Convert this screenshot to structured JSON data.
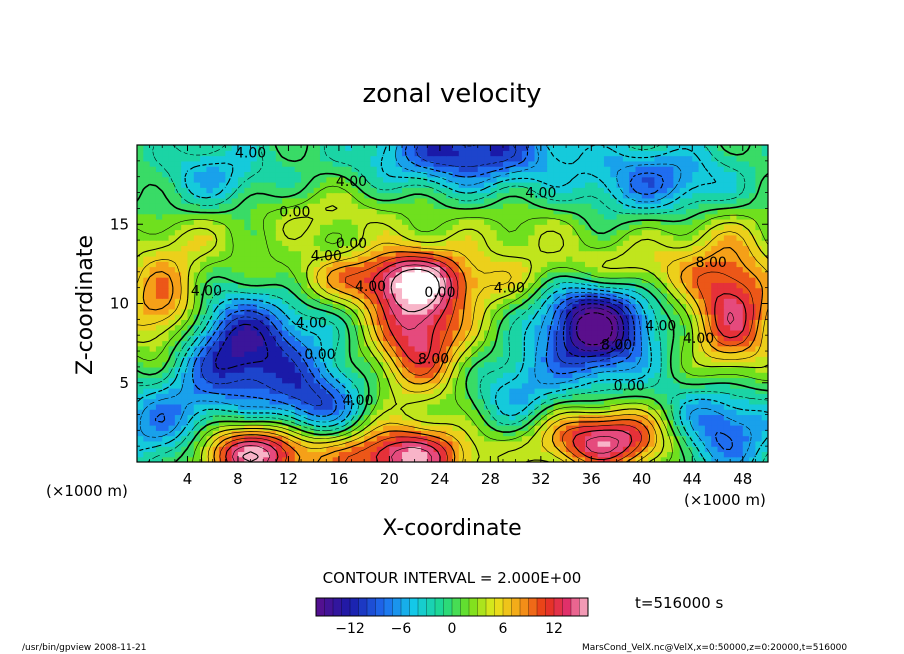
{
  "chart_data": {
    "type": "heatmap",
    "title": "zonal velocity",
    "xlabel": "X-coordinate",
    "ylabel": "Z-coordinate",
    "x_unit": "(×1000 m)",
    "z_unit": "(×1000 m)",
    "x_ticks": [
      "4",
      "8",
      "12",
      "16",
      "20",
      "24",
      "28",
      "32",
      "36",
      "40",
      "44",
      "48"
    ],
    "x_tick_values": [
      4,
      8,
      12,
      16,
      20,
      24,
      28,
      32,
      36,
      40,
      44,
      48
    ],
    "y_ticks": [
      "5",
      "10",
      "15"
    ],
    "y_tick_values": [
      5,
      10,
      15
    ],
    "xlim": [
      0,
      50
    ],
    "ylim": [
      0,
      20
    ],
    "contour_interval_text": "CONTOUR INTERVAL = 2.000E+00",
    "time_text": "t=516000 s",
    "colorbar": {
      "range": [
        -16,
        16
      ],
      "ticks": [
        "−12",
        "−6",
        "0",
        "6",
        "12"
      ],
      "tick_values": [
        -12,
        -6,
        0,
        6,
        12
      ]
    },
    "contour_labels": [
      {
        "text": "4.00",
        "x": 9,
        "z": 19.2
      },
      {
        "text": "4.00",
        "x": 17,
        "z": 17.4
      },
      {
        "text": "4.00",
        "x": 32,
        "z": 16.7
      },
      {
        "text": "0.00",
        "x": 12.5,
        "z": 15.5
      },
      {
        "text": "0.00",
        "x": 17,
        "z": 13.5
      },
      {
        "text": "4.00",
        "x": 15,
        "z": 12.7
      },
      {
        "text": "8.00",
        "x": 45.5,
        "z": 12.3
      },
      {
        "text": "4.00",
        "x": 5.5,
        "z": 10.5
      },
      {
        "text": "4.00",
        "x": 18.5,
        "z": 10.8
      },
      {
        "text": "0.00",
        "x": 24,
        "z": 10.4
      },
      {
        "text": "4.00",
        "x": 29.5,
        "z": 10.7
      },
      {
        "text": "4.00",
        "x": 13.8,
        "z": 8.5
      },
      {
        "text": "0.00",
        "x": 14.5,
        "z": 6.5
      },
      {
        "text": "8.00",
        "x": 23.5,
        "z": 6.2
      },
      {
        "text": "8.00",
        "x": 38,
        "z": 7.1
      },
      {
        "text": "4.00",
        "x": 41.5,
        "z": 8.3
      },
      {
        "text": "4.00",
        "x": 44.5,
        "z": 7.5
      },
      {
        "text": "0.00",
        "x": 39,
        "z": 4.5
      },
      {
        "text": "4.00",
        "x": 17.5,
        "z": 3.6
      }
    ],
    "grid": false,
    "legend": "bottom-center colorbar"
  },
  "footer": {
    "left": "/usr/bin/gpview   2008-11-21",
    "right": "MarsCond_VelX.nc@VelX,x=0:50000,z=0:20000,t=516000"
  }
}
